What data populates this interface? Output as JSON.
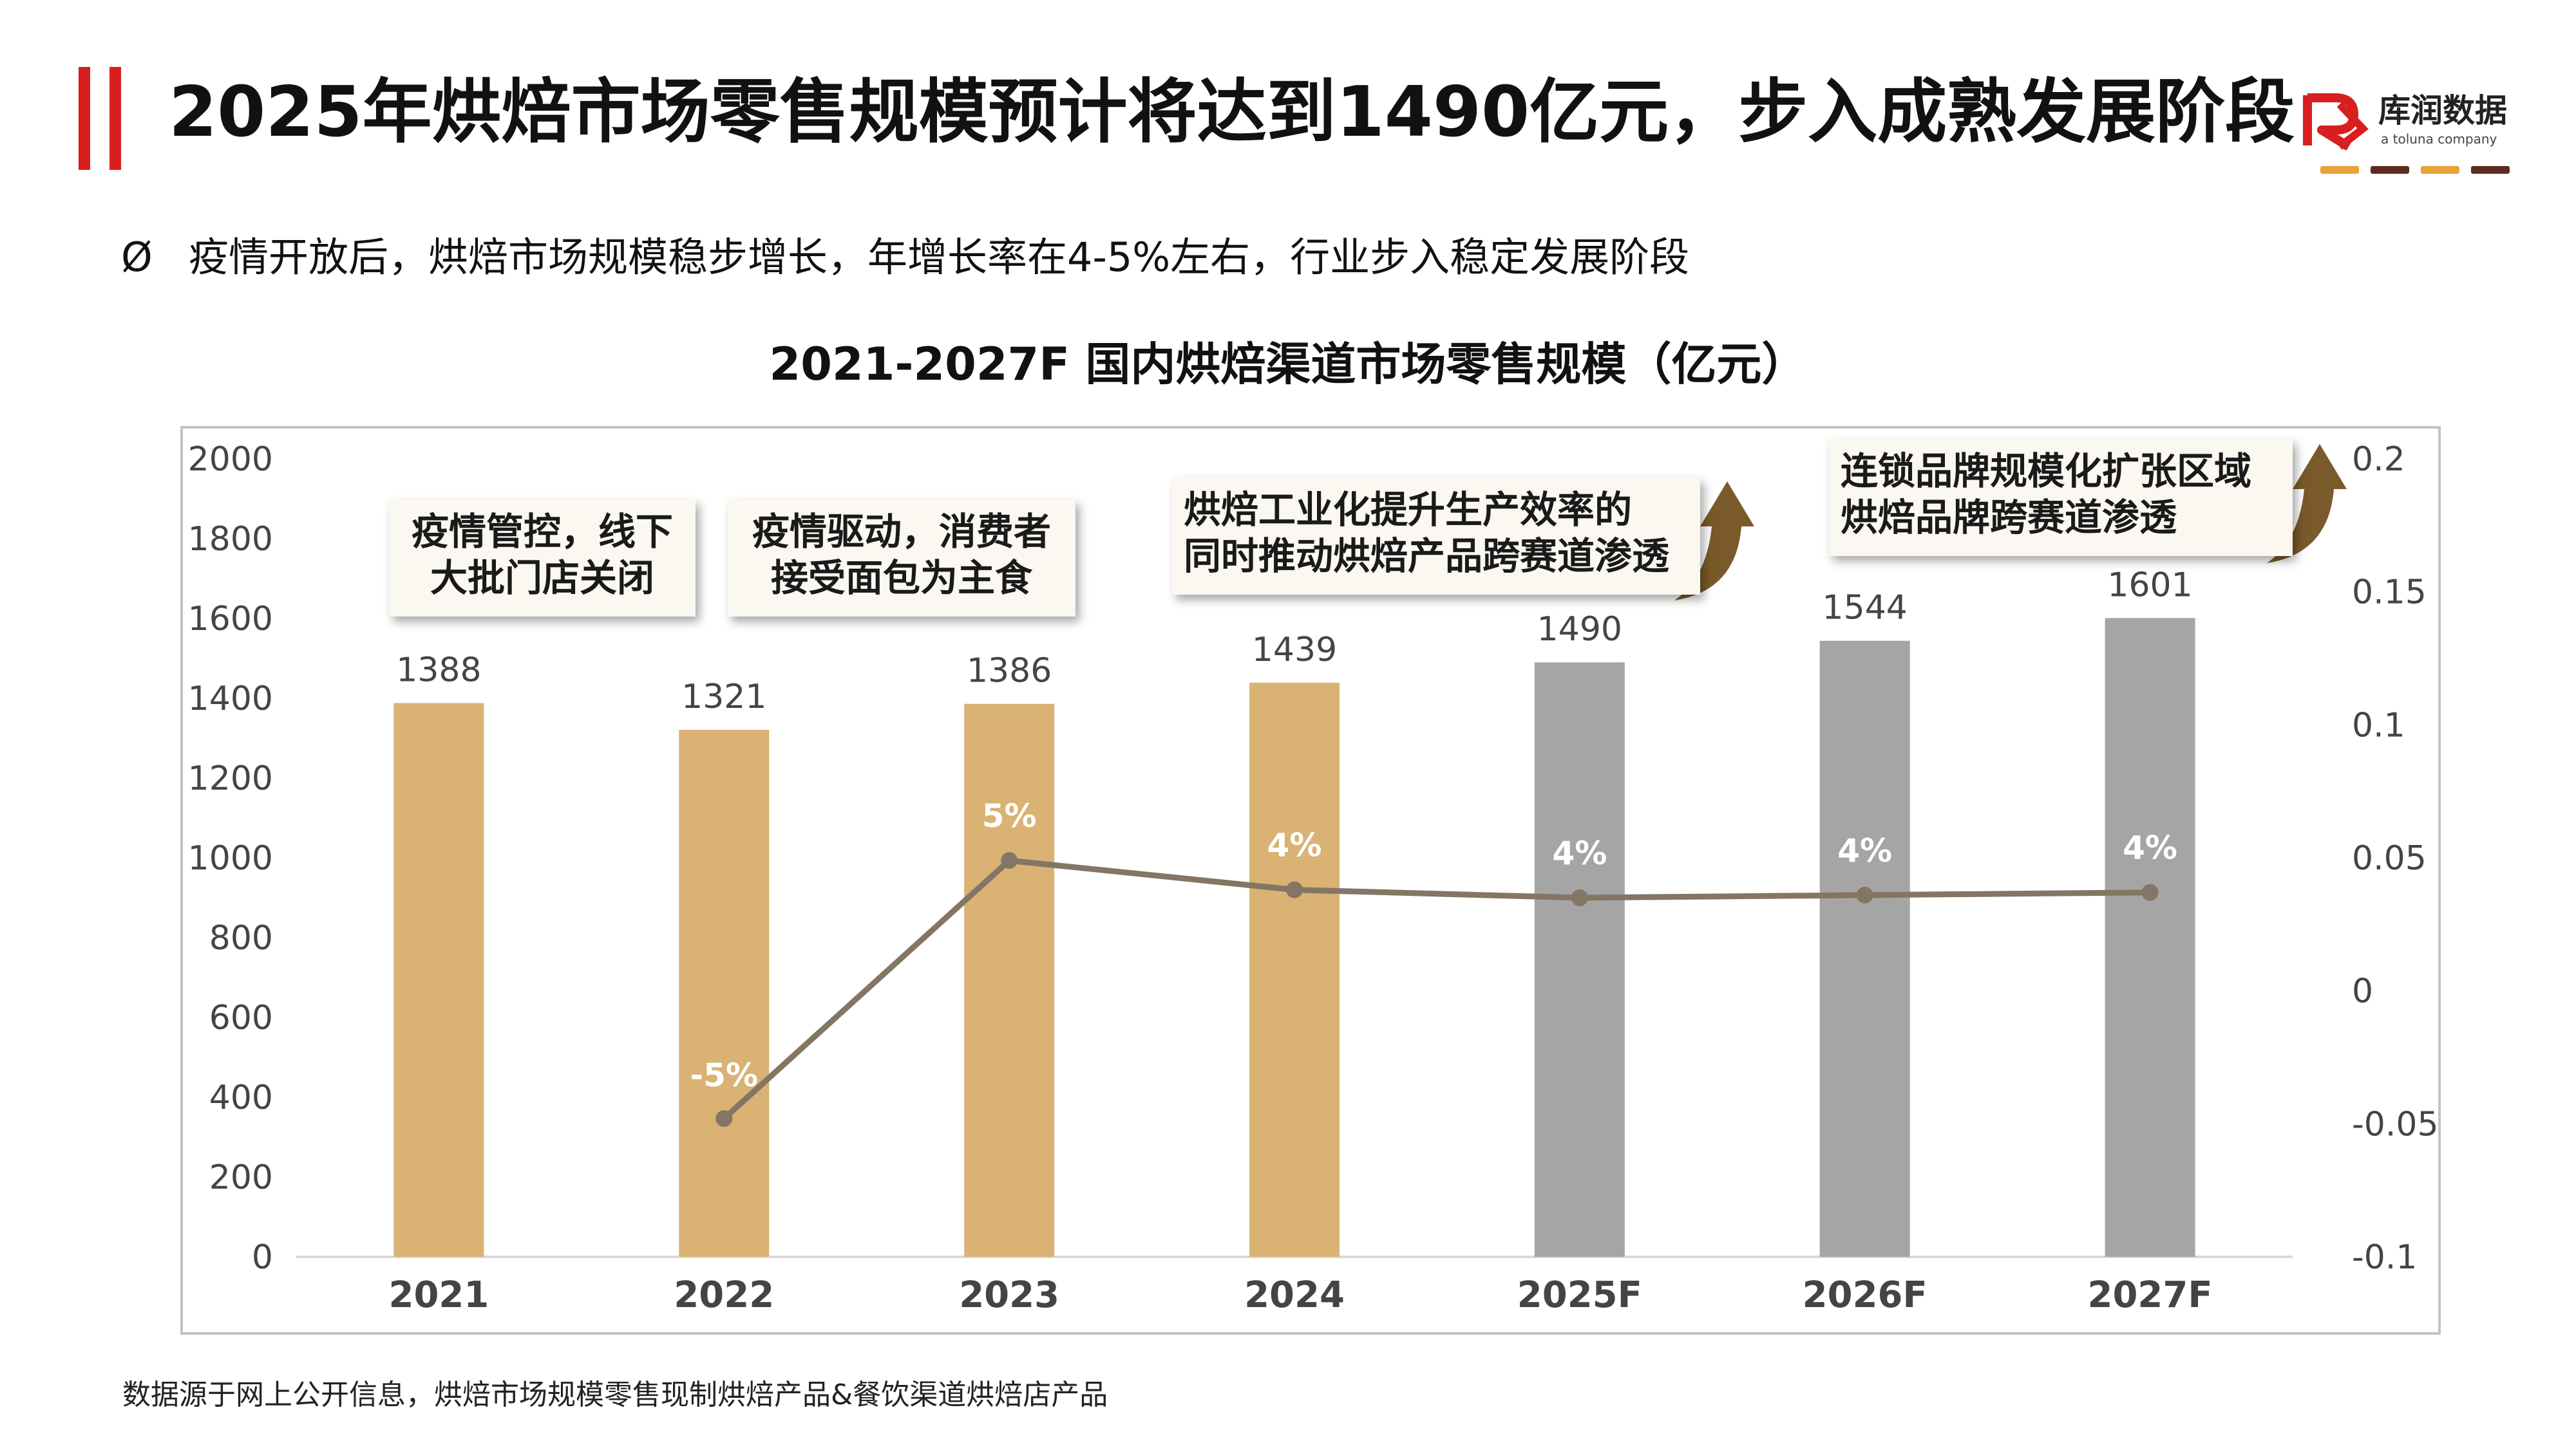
{
  "page": {
    "title": "2025年烘焙市场零售规模预计将达到1490亿元，步入成熟发展阶段",
    "bullet_mark": "Ø",
    "bullet_text": "疫情开放后，烘焙市场规模稳步增长，年增长率在4-5%左右，行业步入稳定发展阶段",
    "footer": "数据源于网上公开信息，烘焙市场规模零售现制烘焙产品&餐饮渠道烘焙店产品"
  },
  "logo": {
    "name": "库润数据",
    "tagline": "a toluna company",
    "colors": [
      "#d81e1e",
      "#e8a23a",
      "#5b2d1f"
    ]
  },
  "callouts": [
    {
      "lines": [
        "疫情管控，线下",
        "大批门店关闭"
      ]
    },
    {
      "lines": [
        "疫情驱动，消费者",
        "接受面包为主食"
      ]
    },
    {
      "lines": [
        "烘焙工业化提升生产效率的",
        "同时推动烘焙产品跨赛道渗透"
      ]
    },
    {
      "lines": [
        "连锁品牌规模化扩张区域",
        "烘焙品牌跨赛道渗透"
      ]
    }
  ],
  "chart_data": {
    "type": "bar",
    "title": "2021-2027F 国内烘焙渠道市场零售规模（亿元）",
    "categories": [
      "2021",
      "2022",
      "2023",
      "2024",
      "2025F",
      "2026F",
      "2027F"
    ],
    "series": [
      {
        "type": "bar",
        "values": [
          1388,
          1321,
          1386,
          1439,
          1490,
          1544,
          1601
        ],
        "labels": [
          "1388",
          "1321",
          "1386",
          "1439",
          "1490",
          "1544",
          "1601"
        ],
        "colors": [
          "#d9b274",
          "#d9b274",
          "#d9b274",
          "#d9b274",
          "#a5a5a5",
          "#a5a5a5",
          "#a5a5a5"
        ],
        "axis": "left"
      },
      {
        "type": "line",
        "values": [
          null,
          -0.048,
          0.049,
          0.038,
          0.035,
          0.036,
          0.037
        ],
        "labels": [
          "",
          "-5%",
          "5%",
          "4%",
          "4%",
          "4%",
          "4%"
        ],
        "color": "#847565",
        "axis": "right"
      }
    ],
    "y_left": {
      "min": 0,
      "max": 2000,
      "ticks": [
        "0",
        "200",
        "400",
        "600",
        "800",
        "1000",
        "1200",
        "1400",
        "1600",
        "1800",
        "2000"
      ]
    },
    "y_right": {
      "min": -0.1,
      "max": 0.2,
      "ticks": [
        "-0.1",
        "-0.05",
        "0",
        "0.05",
        "0.1",
        "0.15",
        "0.2"
      ]
    },
    "legend": "none",
    "grid": false
  }
}
